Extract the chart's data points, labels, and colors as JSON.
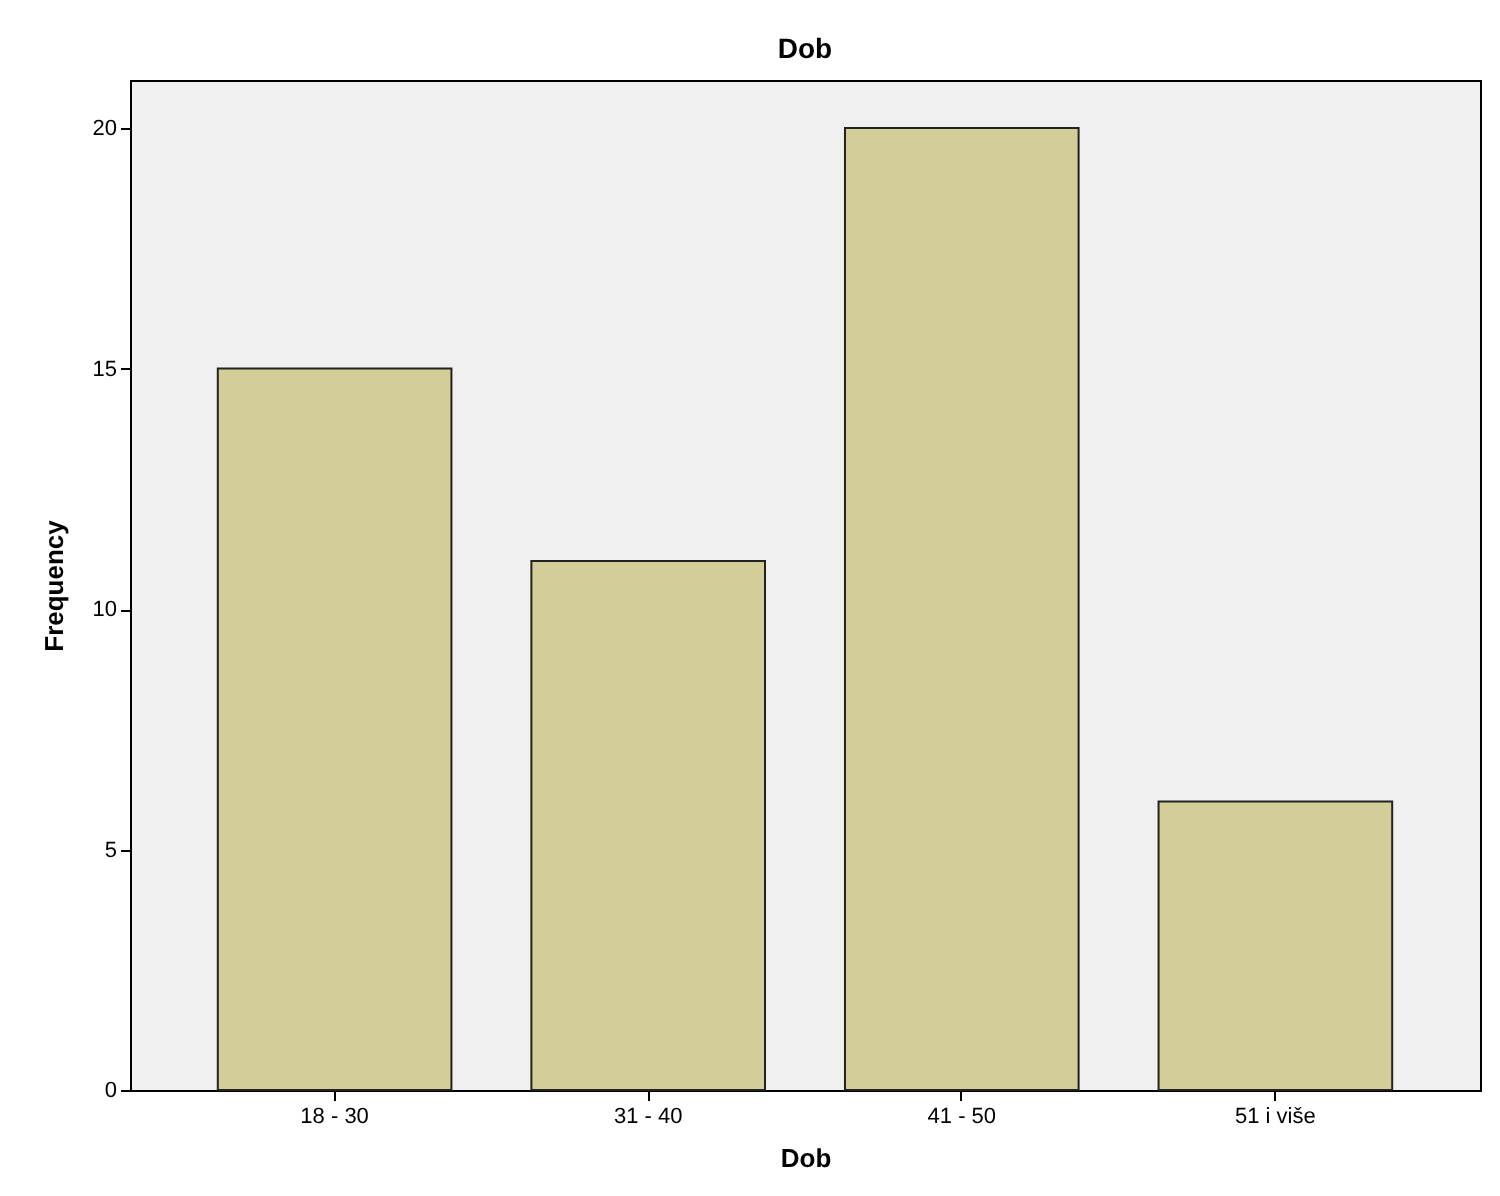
{
  "chart_data": {
    "type": "bar",
    "title": "Dob",
    "xlabel": "Dob",
    "ylabel": "Frequency",
    "categories": [
      "18 - 30",
      "31 - 40",
      "41 - 50",
      "51 i više"
    ],
    "values": [
      15,
      11,
      20,
      6
    ],
    "color": "#d3ce97",
    "ylim": [
      0,
      21
    ],
    "yticks": [
      0,
      5,
      10,
      15,
      20
    ],
    "grid": false
  }
}
